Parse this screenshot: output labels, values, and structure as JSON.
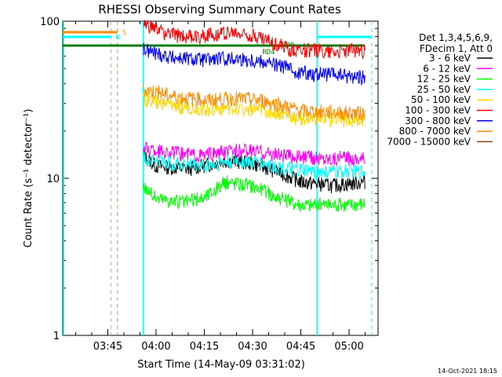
{
  "chart_data": {
    "type": "line",
    "title": "RHESSI Observing Summary Count Rates",
    "xlabel": "Start Time (14-May-09 03:31:02)",
    "ylabel": "Count Rate (s⁻¹ detector⁻¹)",
    "y_scale": "log",
    "ylim": [
      1,
      100
    ],
    "xlim": [
      "03:31",
      "05:09"
    ],
    "x_ticks": [
      "03:45",
      "04:00",
      "04:15",
      "04:30",
      "04:45",
      "05:00"
    ],
    "y_ticks": [
      "1",
      "10",
      "100"
    ],
    "legend_header": [
      "Det 1,3,4,5,6,9,",
      "FDecim 1, Att 0"
    ],
    "legend_position": "right",
    "footer_date": "14-Oct-2021 18:15",
    "flag_labels": [
      {
        "text": "N",
        "color": "#00ffff"
      },
      {
        "text": "S",
        "color": "#ff8c00"
      },
      {
        "text": "RD4",
        "color": "#008000"
      },
      {
        "text": "RD0",
        "color": "#008000"
      }
    ],
    "series": [
      {
        "name": "3 - 6 keV",
        "color": "#000000",
        "points": [
          [
            "03:56",
            14
          ],
          [
            "04:00",
            12
          ],
          [
            "04:10",
            11.5
          ],
          [
            "04:22",
            13
          ],
          [
            "04:30",
            12.5
          ],
          [
            "04:38",
            11
          ],
          [
            "04:45",
            9.5
          ],
          [
            "04:55",
            9
          ],
          [
            "05:05",
            9.5
          ]
        ]
      },
      {
        "name": "6 - 12 keV",
        "color": "#ff00ff",
        "points": [
          [
            "03:56",
            15.5
          ],
          [
            "04:05",
            14.5
          ],
          [
            "04:15",
            14
          ],
          [
            "04:25",
            15
          ],
          [
            "04:32",
            14.8
          ],
          [
            "04:40",
            14
          ],
          [
            "04:50",
            13.5
          ],
          [
            "05:05",
            13.5
          ]
        ]
      },
      {
        "name": "12 - 25 keV",
        "color": "#00ff00",
        "points": [
          [
            "03:56",
            9
          ],
          [
            "04:00",
            7.5
          ],
          [
            "04:08",
            7
          ],
          [
            "04:15",
            7.5
          ],
          [
            "04:22",
            9.5
          ],
          [
            "04:30",
            9
          ],
          [
            "04:38",
            7.5
          ],
          [
            "04:45",
            6.8
          ],
          [
            "05:00",
            6.8
          ],
          [
            "05:05",
            7
          ]
        ]
      },
      {
        "name": "25 - 50 keV",
        "color": "#00ffff",
        "points": [
          [
            "03:56",
            13.5
          ],
          [
            "04:05",
            12.5
          ],
          [
            "04:15",
            12
          ],
          [
            "04:25",
            13
          ],
          [
            "04:33",
            12.5
          ],
          [
            "04:40",
            11.5
          ],
          [
            "04:50",
            11
          ],
          [
            "05:05",
            11
          ]
        ]
      },
      {
        "name": "50 - 100 keV",
        "color": "#ffd700",
        "points": [
          [
            "03:56",
            32
          ],
          [
            "04:05",
            29
          ],
          [
            "04:15",
            27.5
          ],
          [
            "04:25",
            28
          ],
          [
            "04:33",
            27
          ],
          [
            "04:45",
            24
          ],
          [
            "05:05",
            23.5
          ]
        ]
      },
      {
        "name": "100 - 300 keV",
        "color": "#ff0000",
        "points": [
          [
            "03:56",
            95
          ],
          [
            "04:05",
            82
          ],
          [
            "04:12",
            80
          ],
          [
            "04:22",
            85
          ],
          [
            "04:30",
            82
          ],
          [
            "04:37",
            72
          ],
          [
            "04:42",
            66
          ],
          [
            "04:50",
            65
          ],
          [
            "05:05",
            65
          ]
        ]
      },
      {
        "name": "300 - 800 keV",
        "color": "#0000ff",
        "points": [
          [
            "03:56",
            66
          ],
          [
            "04:05",
            59
          ],
          [
            "04:15",
            57
          ],
          [
            "04:25",
            58
          ],
          [
            "04:33",
            56
          ],
          [
            "04:40",
            51
          ],
          [
            "04:45",
            47
          ],
          [
            "05:05",
            44
          ]
        ]
      },
      {
        "name": "800 - 7000 keV",
        "color": "#ff8c00",
        "points": [
          [
            "03:56",
            37
          ],
          [
            "04:05",
            33.5
          ],
          [
            "04:15",
            31.5
          ],
          [
            "04:25",
            32.5
          ],
          [
            "04:33",
            31.5
          ],
          [
            "04:45",
            27
          ],
          [
            "05:05",
            26
          ]
        ]
      },
      {
        "name": "7000 - 15000 keV",
        "color": "#8b4513",
        "points": []
      }
    ]
  }
}
